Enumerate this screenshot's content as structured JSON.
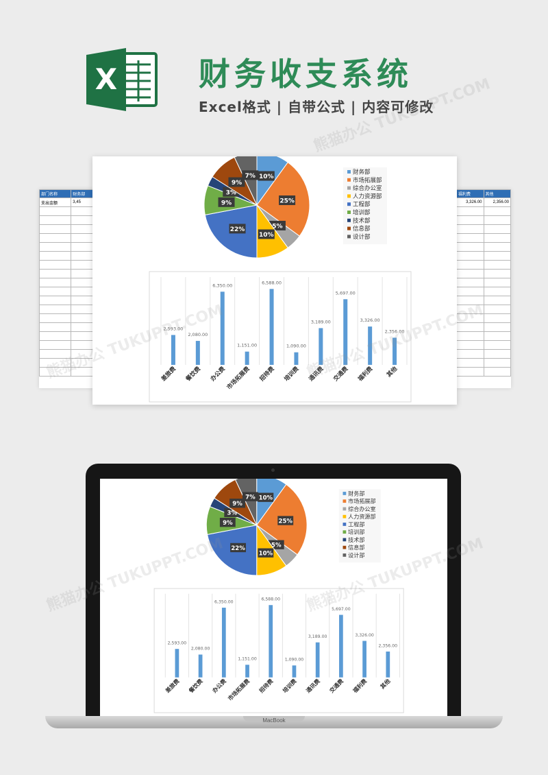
{
  "header": {
    "title": "财务收支系统",
    "subtitle": "Excel格式 | 自带公式 | 内容可修改",
    "logo_letter": "X"
  },
  "left_sheet": {
    "headers": [
      "部门名称",
      "财务部"
    ],
    "row_label": "支出金额",
    "row_value": "3,45"
  },
  "right_sheet": {
    "headers": [
      "福利费",
      "其他"
    ],
    "values": [
      "3,326.00",
      "2,356.00"
    ]
  },
  "laptop": {
    "brand": "MacBook"
  },
  "watermark": "熊猫办公 TUKUPPT.COM",
  "colors": {
    "accent_green": "#2e8b57",
    "excel_green": "#1f7244",
    "bar_blue": "#5b9bd5",
    "sheet_header": "#2f6eb5"
  },
  "chart_data": [
    {
      "type": "pie",
      "labels": [
        "财务部",
        "市场拓展部",
        "综合办公室",
        "人力资源部",
        "工程部",
        "培训部",
        "技术部",
        "信息部",
        "设计部"
      ],
      "values": [
        10,
        25,
        5,
        10,
        22,
        9,
        3,
        9,
        7
      ],
      "value_labels": [
        "10%",
        "25%",
        "5%",
        "10%",
        "22%",
        "9%",
        "3%",
        "9%",
        "7%"
      ],
      "colors": [
        "#5b9bd5",
        "#ed7d31",
        "#a5a5a5",
        "#ffc000",
        "#4472c4",
        "#70ad47",
        "#264478",
        "#9e480e",
        "#636363"
      ],
      "legend": "right"
    },
    {
      "type": "bar",
      "categories": [
        "差旅费",
        "餐饮费",
        "办公费",
        "市场拓展费",
        "招待费",
        "培训费",
        "通讯费",
        "交通费",
        "福利费",
        "其他"
      ],
      "values": [
        2593,
        2080,
        6350,
        1151,
        6588,
        1090,
        3189,
        5697,
        3326,
        2356
      ],
      "value_labels": [
        "2,593.00",
        "2,080.00",
        "6,350.00",
        "1,151.00",
        "6,588.00",
        "1,090.00",
        "3,189.00",
        "5,697.00",
        "3,326.00",
        "2,356.00"
      ],
      "ylim": [
        0,
        7500
      ],
      "color": "#5b9bd5",
      "grid": "vertical"
    }
  ]
}
